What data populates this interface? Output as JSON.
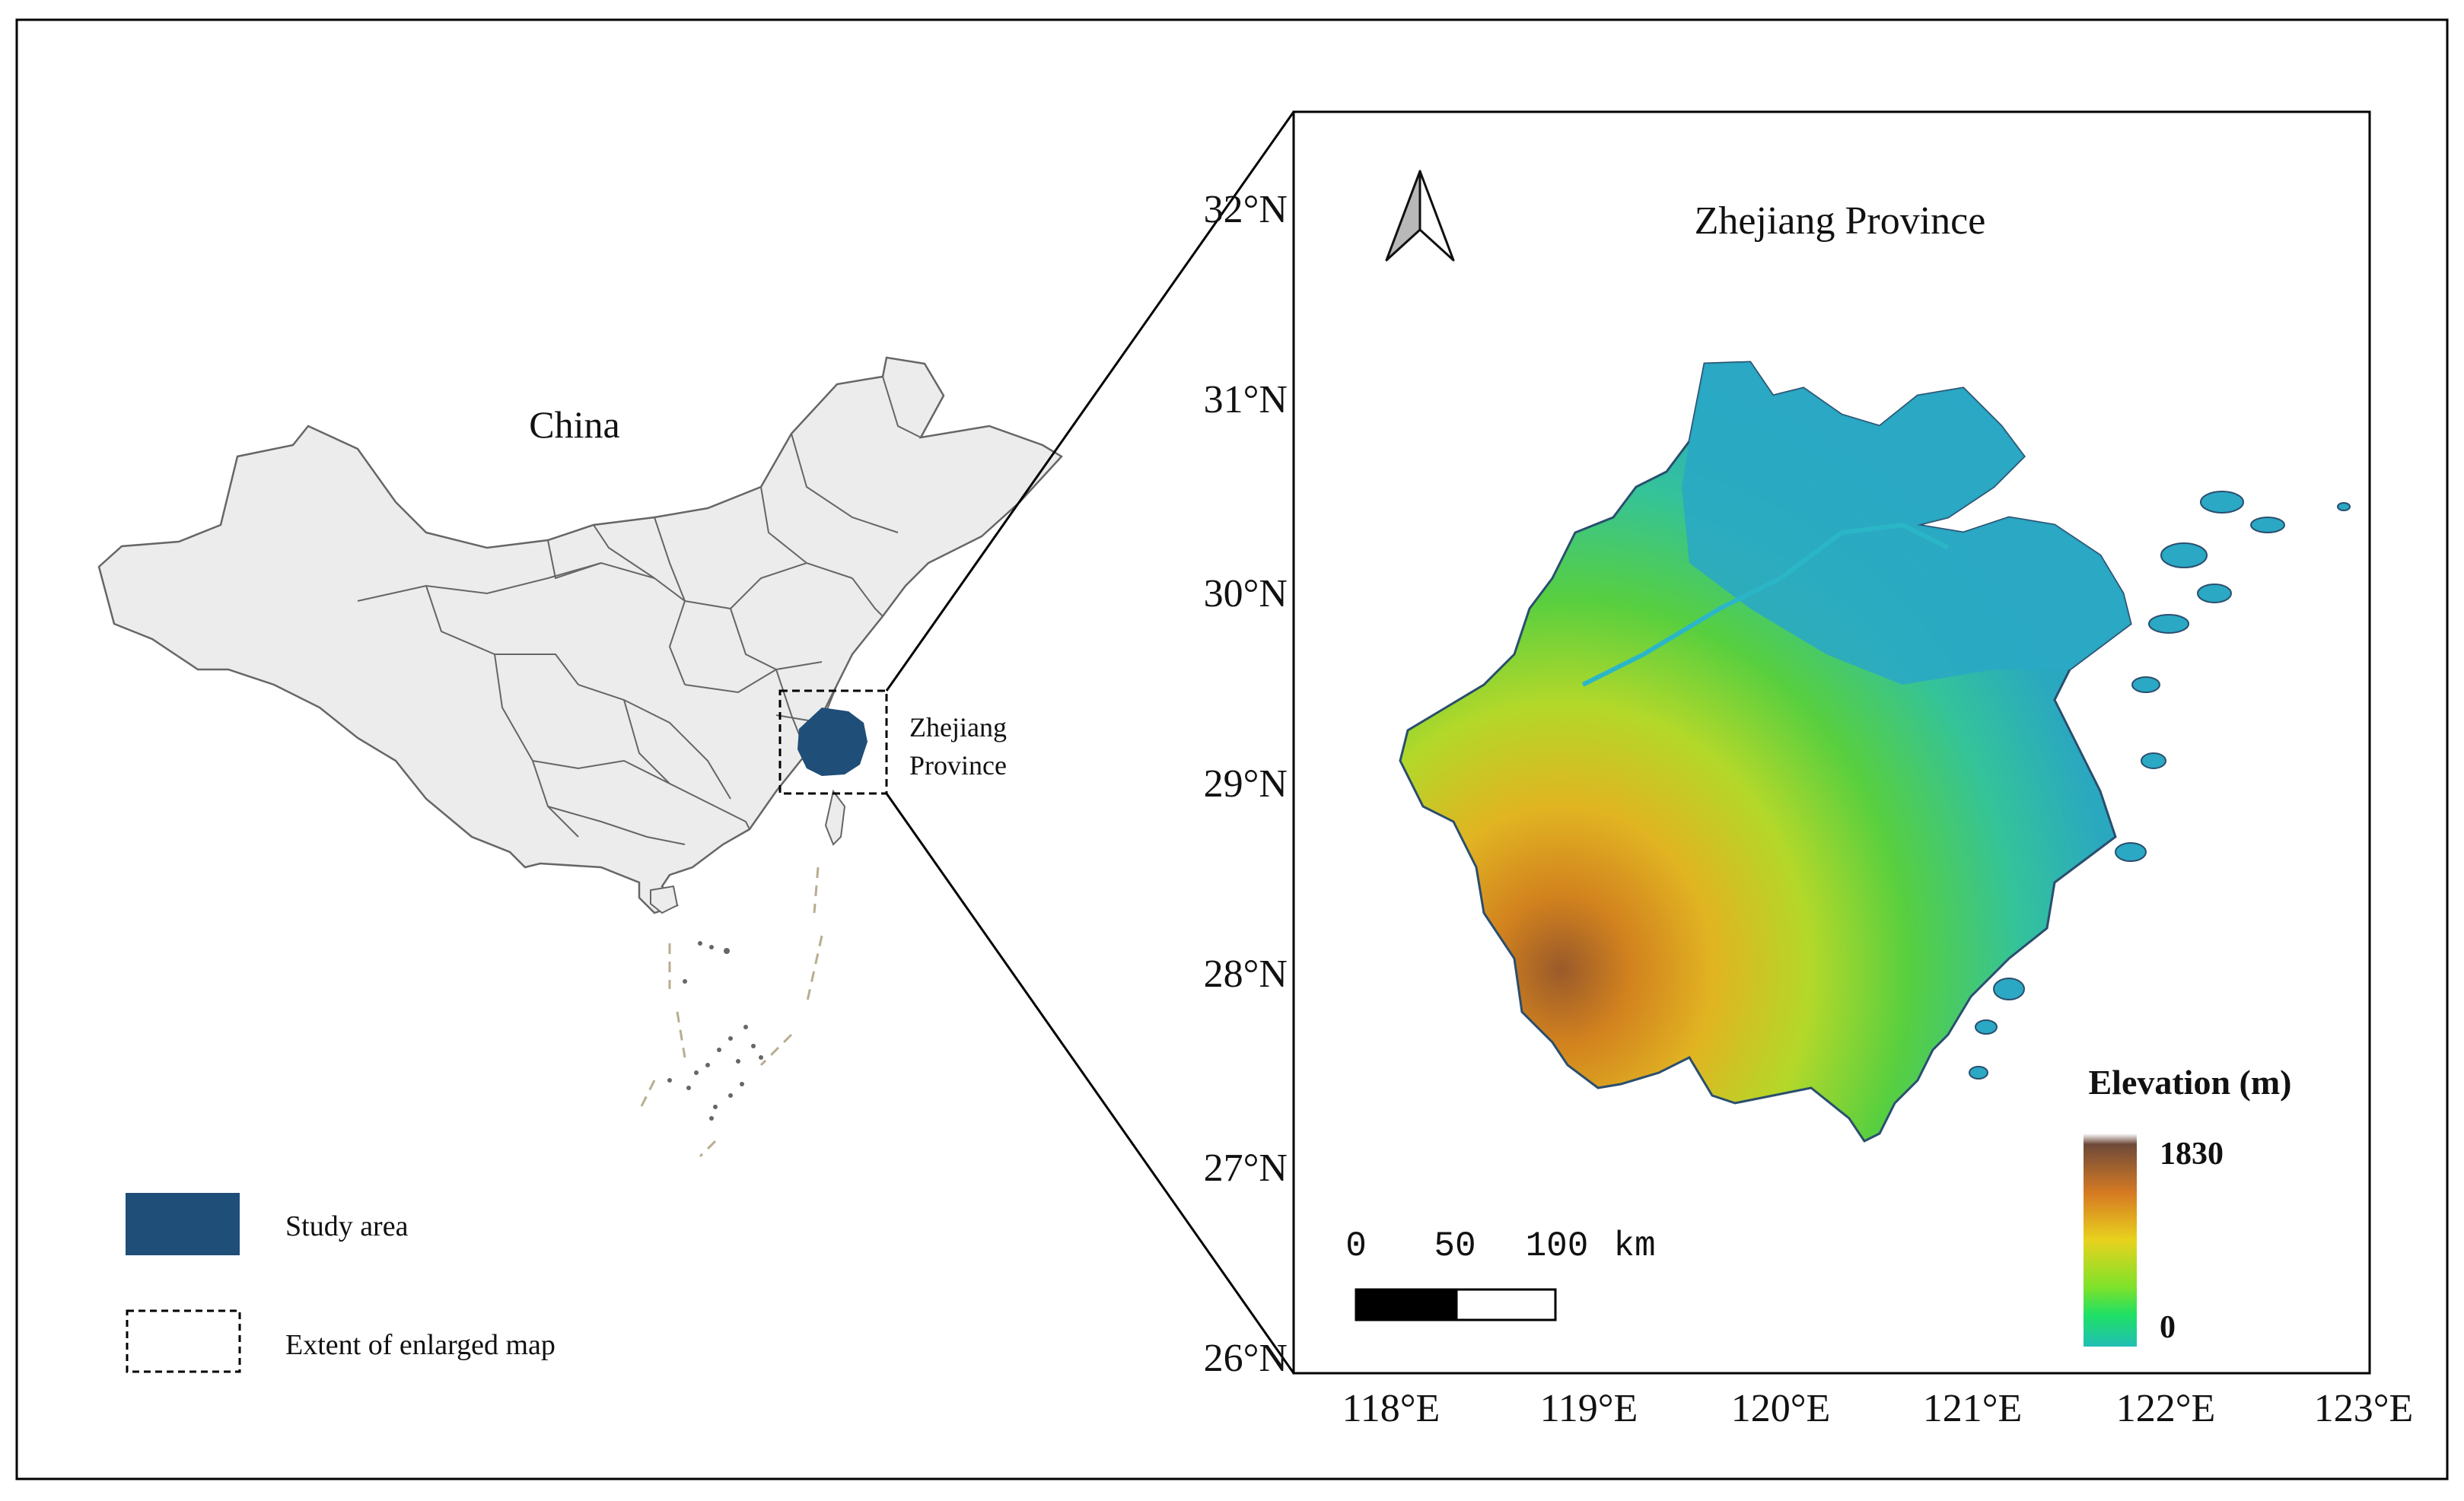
{
  "overview": {
    "country_label": "China",
    "inset_label_line1": "Zhejiang",
    "inset_label_line2": "Province"
  },
  "legend": {
    "study_area_label": "Study area",
    "extent_label": "Extent of enlarged map",
    "study_area_color": "#1f4e79"
  },
  "detail": {
    "title": "Zhejiang Province",
    "lat_ticks": [
      "32°N",
      "31°N",
      "30°N",
      "29°N",
      "28°N",
      "27°N",
      "26°N"
    ],
    "lon_ticks": [
      "118°E",
      "119°E",
      "120°E",
      "121°E",
      "122°E",
      "123°E"
    ],
    "scale_bar": {
      "labels": [
        "0",
        "50",
        "100"
      ],
      "unit": "km"
    },
    "elevation_legend": {
      "title": "Elevation (m)",
      "max_label": "1830",
      "min_label": "0",
      "colors": [
        "#8a6e5e",
        "#d77a1e",
        "#e6c21e",
        "#9be02a",
        "#26e05c",
        "#20c4b0"
      ]
    },
    "north_arrow_icon": "north-arrow-icon"
  },
  "colors": {
    "land_gray": "#ececec",
    "boundary": "#666666",
    "sea_blue": "#2aa7c2"
  }
}
